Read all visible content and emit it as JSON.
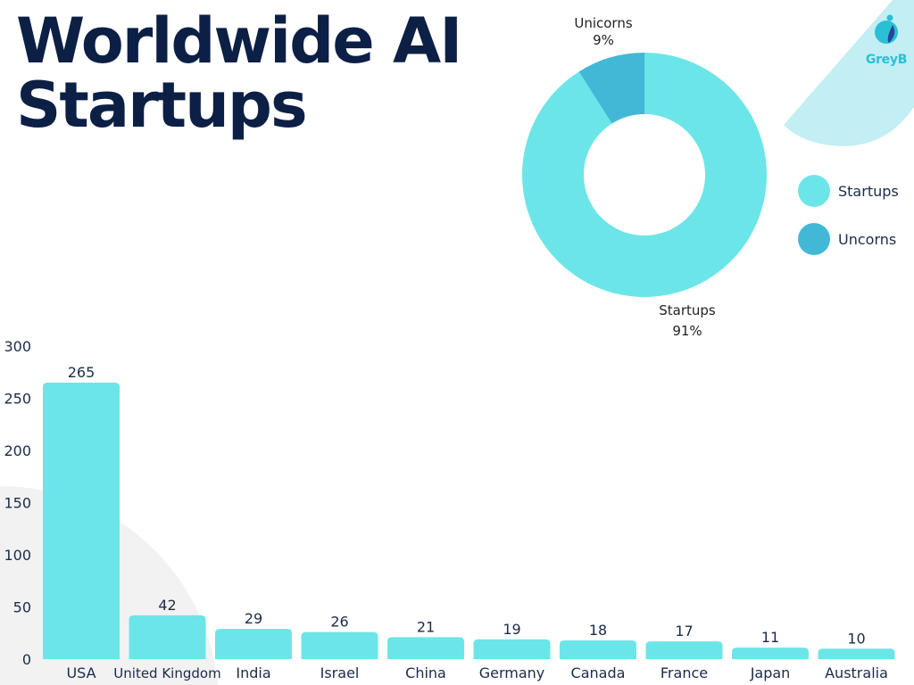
{
  "page": {
    "title_line1": "Worldwide AI",
    "title_line2": "Startups",
    "brand": "GreyB",
    "colors": {
      "title": "#0c1f45",
      "bar": "#6ce5e8",
      "startups": "#6ce5e8",
      "unicorns": "#43b8d6",
      "accent_shape": "#c3eef3",
      "gray_shape": "#f2f2f2",
      "text": "#1b2b4a"
    }
  },
  "legend": {
    "items": [
      {
        "label": "Startups",
        "color": "#6ce5e8"
      },
      {
        "label": "Uncorns",
        "color": "#43b8d6"
      }
    ]
  },
  "chart_data": [
    {
      "type": "pie",
      "variant": "donut",
      "title": "",
      "slices": [
        {
          "name": "Startups",
          "value": 91,
          "label": "Startups",
          "percent_label": "91%",
          "color": "#6ce5e8"
        },
        {
          "name": "Unicorns",
          "value": 9,
          "label": "Unicorns",
          "percent_label": "9%",
          "color": "#43b8d6"
        }
      ],
      "legend_position": "right"
    },
    {
      "type": "bar",
      "title": "",
      "xlabel": "",
      "ylabel": "",
      "categories": [
        "USA",
        "United Kingdom",
        "India",
        "Israel",
        "China",
        "Germany",
        "Canada",
        "France",
        "Japan",
        "Australia"
      ],
      "values": [
        265,
        42,
        29,
        26,
        21,
        19,
        18,
        17,
        11,
        10
      ],
      "ylim": [
        0,
        300
      ],
      "yticks": [
        0,
        50,
        100,
        150,
        200,
        250,
        300
      ],
      "grid": false,
      "data_labels": true,
      "color": "#6ce5e8"
    }
  ]
}
